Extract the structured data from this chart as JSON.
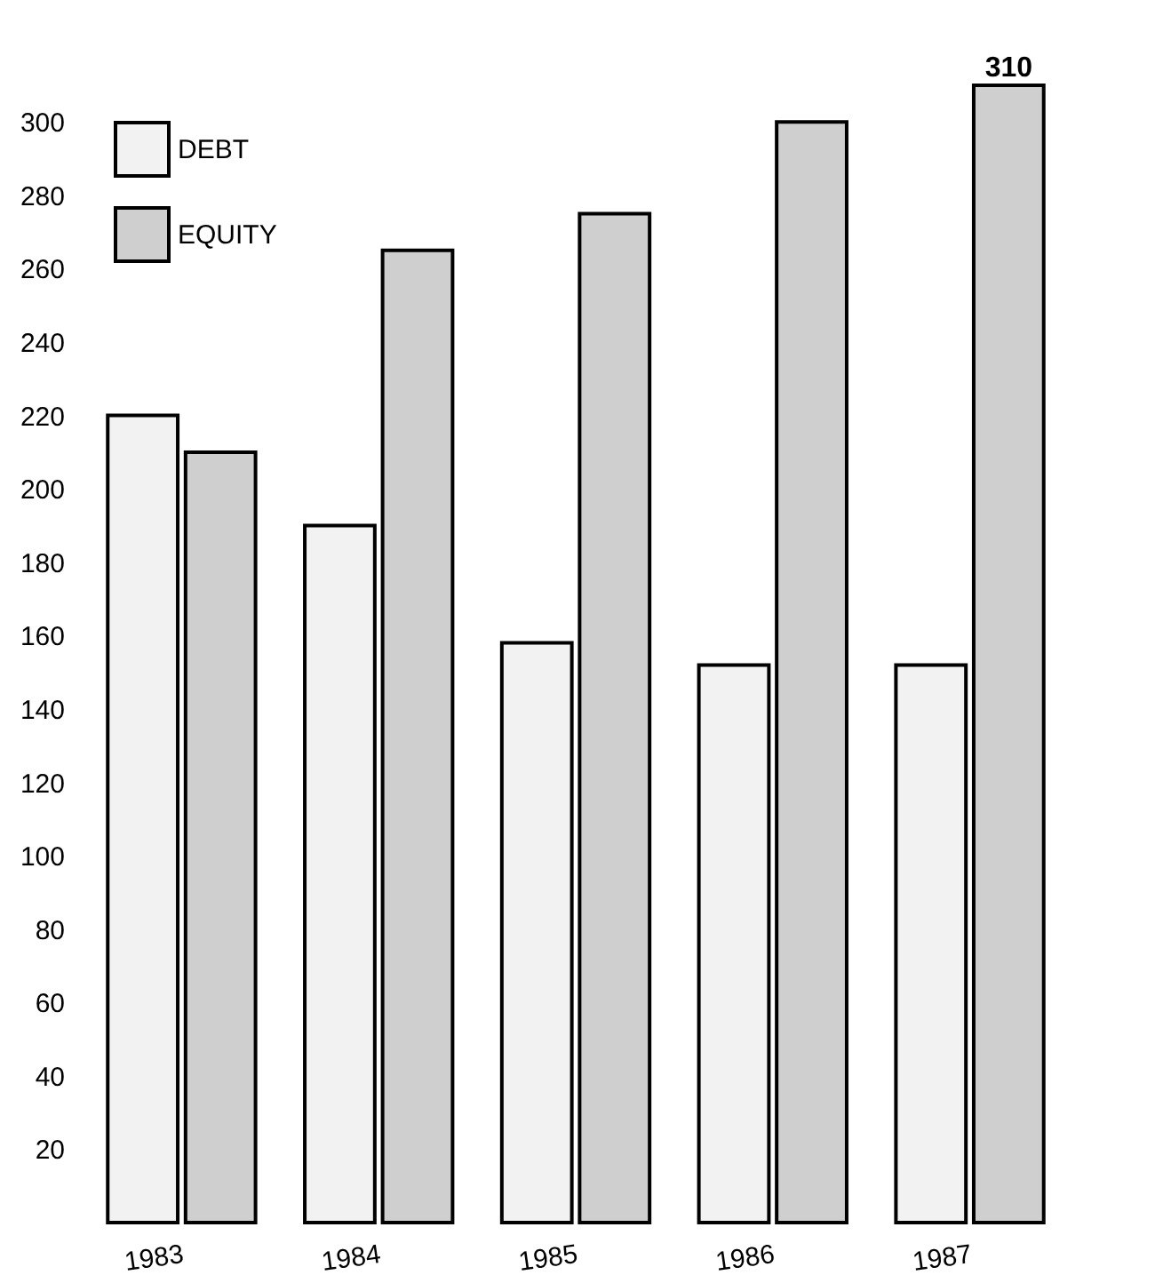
{
  "chart_data": {
    "type": "bar",
    "categories": [
      "1983",
      "1984",
      "1985",
      "1986",
      "1987"
    ],
    "series": [
      {
        "name": "DEBT",
        "color": "#f2f2f2",
        "values": [
          220,
          190,
          158,
          152,
          152
        ]
      },
      {
        "name": "EQUITY",
        "color": "#cfcfcf",
        "values": [
          210,
          265,
          275,
          300,
          310
        ],
        "value_labels": [
          null,
          null,
          null,
          null,
          "310"
        ]
      }
    ],
    "ylim": [
      0,
      310
    ],
    "yticks": [
      20,
      40,
      60,
      80,
      100,
      120,
      140,
      160,
      180,
      200,
      220,
      240,
      260,
      280,
      300
    ],
    "grid": false,
    "legend": "top left"
  }
}
